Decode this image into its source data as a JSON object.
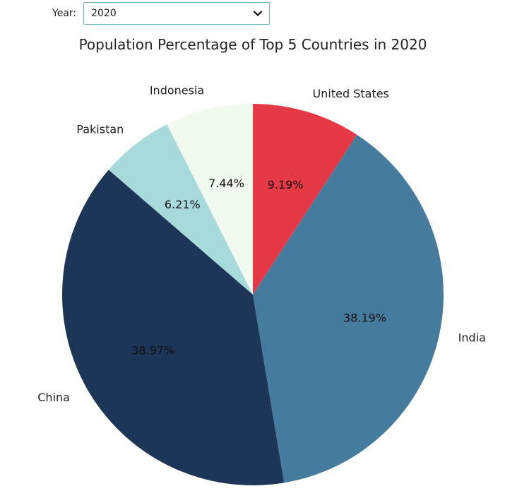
{
  "controls": {
    "year_label": "Year:",
    "year_selected": "2020"
  },
  "chart_data": {
    "type": "pie",
    "title": "Population Percentage of Top 5 Countries in 2020",
    "start_angle_deg": 90,
    "direction": "clockwise",
    "slices": [
      {
        "label": "United States",
        "pct_label": "9.19%",
        "value": 9.19,
        "color": "#e63946"
      },
      {
        "label": "India",
        "pct_label": "38.19%",
        "value": 38.19,
        "color": "#457b9d"
      },
      {
        "label": "China",
        "pct_label": "38.97%",
        "value": 38.97,
        "color": "#1d3557"
      },
      {
        "label": "Pakistan",
        "pct_label": "6.21%",
        "value": 6.21,
        "color": "#a8dadc"
      },
      {
        "label": "Indonesia",
        "pct_label": "7.44%",
        "value": 7.44,
        "color": "#f1faee"
      }
    ]
  }
}
